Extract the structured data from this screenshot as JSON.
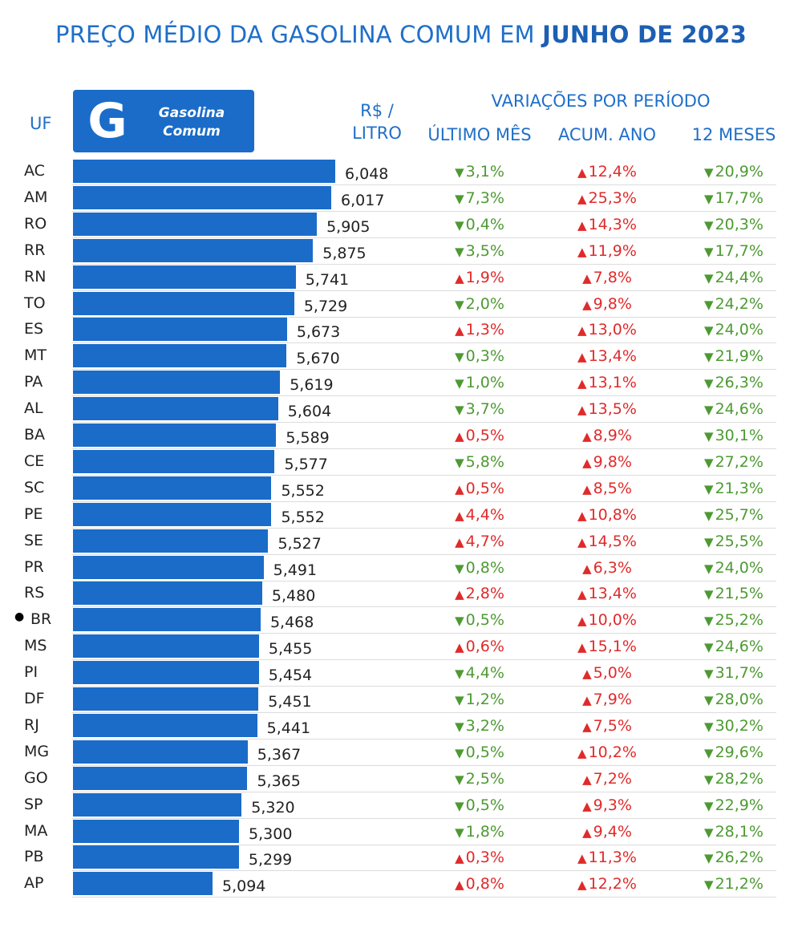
{
  "title_main": "PREÇO MÉDIO DA GASOLINA COMUM EM",
  "title_bold": "JUNHO DE 2023",
  "header": {
    "uf": "UF",
    "unit_line1": "R$ /",
    "unit_line2": "LITRO",
    "variations": "VARIAÇÕES POR PERÍODO",
    "col_month": "ÚLTIMO MÊS",
    "col_year": "ACUM. ANO",
    "col_12m": "12 MESES"
  },
  "badge": {
    "logo": "G",
    "line1": "Gasolina",
    "line2": "Comum"
  },
  "colors": {
    "bar": "#1a6cc8",
    "up": "#e12a2a",
    "down": "#4d9a32",
    "accent": "#1f6fc9"
  },
  "chart_data": {
    "type": "bar",
    "orientation": "horizontal",
    "title": "PREÇO MÉDIO DA GASOLINA COMUM EM JUNHO DE 2023",
    "unit": "R$ / LITRO",
    "categories": [
      "AC",
      "AM",
      "RO",
      "RR",
      "RN",
      "TO",
      "ES",
      "MT",
      "PA",
      "AL",
      "BA",
      "CE",
      "SC",
      "PE",
      "SE",
      "PR",
      "RS",
      "BR",
      "MS",
      "PI",
      "DF",
      "RJ",
      "MG",
      "GO",
      "SP",
      "MA",
      "PB",
      "AP"
    ],
    "values": [
      6.048,
      6.017,
      5.905,
      5.875,
      5.741,
      5.729,
      5.673,
      5.67,
      5.619,
      5.604,
      5.589,
      5.577,
      5.552,
      5.552,
      5.527,
      5.491,
      5.48,
      5.468,
      5.455,
      5.454,
      5.451,
      5.441,
      5.367,
      5.365,
      5.32,
      5.3,
      5.299,
      5.094
    ],
    "labels": [
      "6,048",
      "6,017",
      "5,905",
      "5,875",
      "5,741",
      "5,729",
      "5,673",
      "5,670",
      "5,619",
      "5,604",
      "5,589",
      "5,577",
      "5,552",
      "5,552",
      "5,527",
      "5,491",
      "5,480",
      "5,468",
      "5,455",
      "5,454",
      "5,451",
      "5,441",
      "5,367",
      "5,365",
      "5,320",
      "5,300",
      "5,299",
      "5,094"
    ],
    "highlight": "BR",
    "variations": {
      "ultimo_mes": [
        {
          "dir": "down",
          "text": "3,1%"
        },
        {
          "dir": "down",
          "text": "7,3%"
        },
        {
          "dir": "down",
          "text": "0,4%"
        },
        {
          "dir": "down",
          "text": "3,5%"
        },
        {
          "dir": "up",
          "text": "1,9%"
        },
        {
          "dir": "down",
          "text": "2,0%"
        },
        {
          "dir": "up",
          "text": "1,3%"
        },
        {
          "dir": "down",
          "text": "0,3%"
        },
        {
          "dir": "down",
          "text": "1,0%"
        },
        {
          "dir": "down",
          "text": "3,7%"
        },
        {
          "dir": "up",
          "text": "0,5%"
        },
        {
          "dir": "down",
          "text": "5,8%"
        },
        {
          "dir": "up",
          "text": "0,5%"
        },
        {
          "dir": "up",
          "text": "4,4%"
        },
        {
          "dir": "up",
          "text": "4,7%"
        },
        {
          "dir": "down",
          "text": "0,8%"
        },
        {
          "dir": "up",
          "text": "2,8%"
        },
        {
          "dir": "down",
          "text": "0,5%"
        },
        {
          "dir": "up",
          "text": "0,6%"
        },
        {
          "dir": "down",
          "text": "4,4%"
        },
        {
          "dir": "down",
          "text": "1,2%"
        },
        {
          "dir": "down",
          "text": "3,2%"
        },
        {
          "dir": "down",
          "text": "0,5%"
        },
        {
          "dir": "down",
          "text": "2,5%"
        },
        {
          "dir": "down",
          "text": "0,5%"
        },
        {
          "dir": "down",
          "text": "1,8%"
        },
        {
          "dir": "up",
          "text": "0,3%"
        },
        {
          "dir": "up",
          "text": "0,8%"
        }
      ],
      "acum_ano": [
        {
          "dir": "up",
          "text": "12,4%"
        },
        {
          "dir": "up",
          "text": "25,3%"
        },
        {
          "dir": "up",
          "text": "14,3%"
        },
        {
          "dir": "up",
          "text": "11,9%"
        },
        {
          "dir": "up",
          "text": "7,8%"
        },
        {
          "dir": "up",
          "text": "9,8%"
        },
        {
          "dir": "up",
          "text": "13,0%"
        },
        {
          "dir": "up",
          "text": "13,4%"
        },
        {
          "dir": "up",
          "text": "13,1%"
        },
        {
          "dir": "up",
          "text": "13,5%"
        },
        {
          "dir": "up",
          "text": "8,9%"
        },
        {
          "dir": "up",
          "text": "9,8%"
        },
        {
          "dir": "up",
          "text": "8,5%"
        },
        {
          "dir": "up",
          "text": "10,8%"
        },
        {
          "dir": "up",
          "text": "14,5%"
        },
        {
          "dir": "up",
          "text": "6,3%"
        },
        {
          "dir": "up",
          "text": "13,4%"
        },
        {
          "dir": "up",
          "text": "10,0%"
        },
        {
          "dir": "up",
          "text": "15,1%"
        },
        {
          "dir": "up",
          "text": "5,0%"
        },
        {
          "dir": "up",
          "text": "7,9%"
        },
        {
          "dir": "up",
          "text": "7,5%"
        },
        {
          "dir": "up",
          "text": "10,2%"
        },
        {
          "dir": "up",
          "text": "7,2%"
        },
        {
          "dir": "up",
          "text": "9,3%"
        },
        {
          "dir": "up",
          "text": "9,4%"
        },
        {
          "dir": "up",
          "text": "11,3%"
        },
        {
          "dir": "up",
          "text": "12,2%"
        }
      ],
      "doze_meses": [
        {
          "dir": "down",
          "text": "20,9%"
        },
        {
          "dir": "down",
          "text": "17,7%"
        },
        {
          "dir": "down",
          "text": "20,3%"
        },
        {
          "dir": "down",
          "text": "17,7%"
        },
        {
          "dir": "down",
          "text": "24,4%"
        },
        {
          "dir": "down",
          "text": "24,2%"
        },
        {
          "dir": "down",
          "text": "24,0%"
        },
        {
          "dir": "down",
          "text": "21,9%"
        },
        {
          "dir": "down",
          "text": "26,3%"
        },
        {
          "dir": "down",
          "text": "24,6%"
        },
        {
          "dir": "down",
          "text": "30,1%"
        },
        {
          "dir": "down",
          "text": "27,2%"
        },
        {
          "dir": "down",
          "text": "21,3%"
        },
        {
          "dir": "down",
          "text": "25,7%"
        },
        {
          "dir": "down",
          "text": "25,5%"
        },
        {
          "dir": "down",
          "text": "24,0%"
        },
        {
          "dir": "down",
          "text": "21,5%"
        },
        {
          "dir": "down",
          "text": "25,2%"
        },
        {
          "dir": "down",
          "text": "24,6%"
        },
        {
          "dir": "down",
          "text": "31,7%"
        },
        {
          "dir": "down",
          "text": "28,0%"
        },
        {
          "dir": "down",
          "text": "30,2%"
        },
        {
          "dir": "down",
          "text": "29,6%"
        },
        {
          "dir": "down",
          "text": "28,2%"
        },
        {
          "dir": "down",
          "text": "22,9%"
        },
        {
          "dir": "down",
          "text": "28,1%"
        },
        {
          "dir": "down",
          "text": "26,2%"
        },
        {
          "dir": "down",
          "text": "21,2%"
        }
      ]
    }
  }
}
